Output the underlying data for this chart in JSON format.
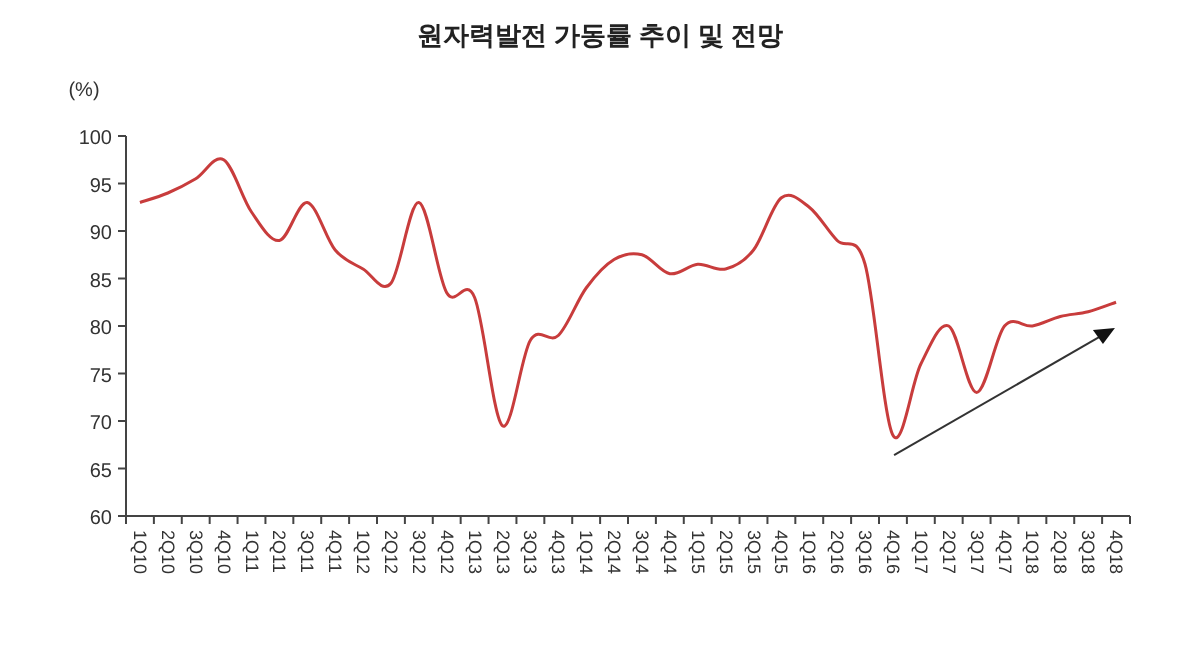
{
  "chart_data": {
    "type": "line",
    "title": "원자력발전 가동률 추이 및 전망",
    "ylabel": "(%)",
    "categories": [
      "1Q10",
      "2Q10",
      "3Q10",
      "4Q10",
      "1Q11",
      "2Q11",
      "3Q11",
      "4Q11",
      "1Q12",
      "2Q12",
      "3Q12",
      "4Q12",
      "1Q13",
      "2Q13",
      "3Q13",
      "4Q13",
      "1Q14",
      "2Q14",
      "3Q14",
      "4Q14",
      "1Q15",
      "2Q15",
      "3Q15",
      "4Q15",
      "1Q16",
      "2Q16",
      "3Q16",
      "4Q16",
      "1Q17",
      "2Q17",
      "3Q17",
      "4Q17",
      "1Q18",
      "2Q18",
      "3Q18",
      "4Q18"
    ],
    "series": [
      {
        "color": "#c83c3c",
        "values": [
          93,
          94,
          95.5,
          97.5,
          92,
          89,
          93,
          88,
          86,
          84.5,
          93,
          83.5,
          83,
          69.5,
          78.5,
          79,
          84,
          87,
          87.5,
          85.5,
          86.5,
          86,
          88,
          93.5,
          92.5,
          89,
          86.5,
          68.5,
          76,
          80,
          73,
          80,
          80,
          81,
          81.5,
          82.5
        ]
      }
    ],
    "ylim": [
      60,
      100
    ],
    "yticks": [
      60,
      65,
      70,
      75,
      80,
      85,
      90,
      95,
      100
    ],
    "grid": false,
    "marker": "none",
    "line_style": "solid"
  }
}
